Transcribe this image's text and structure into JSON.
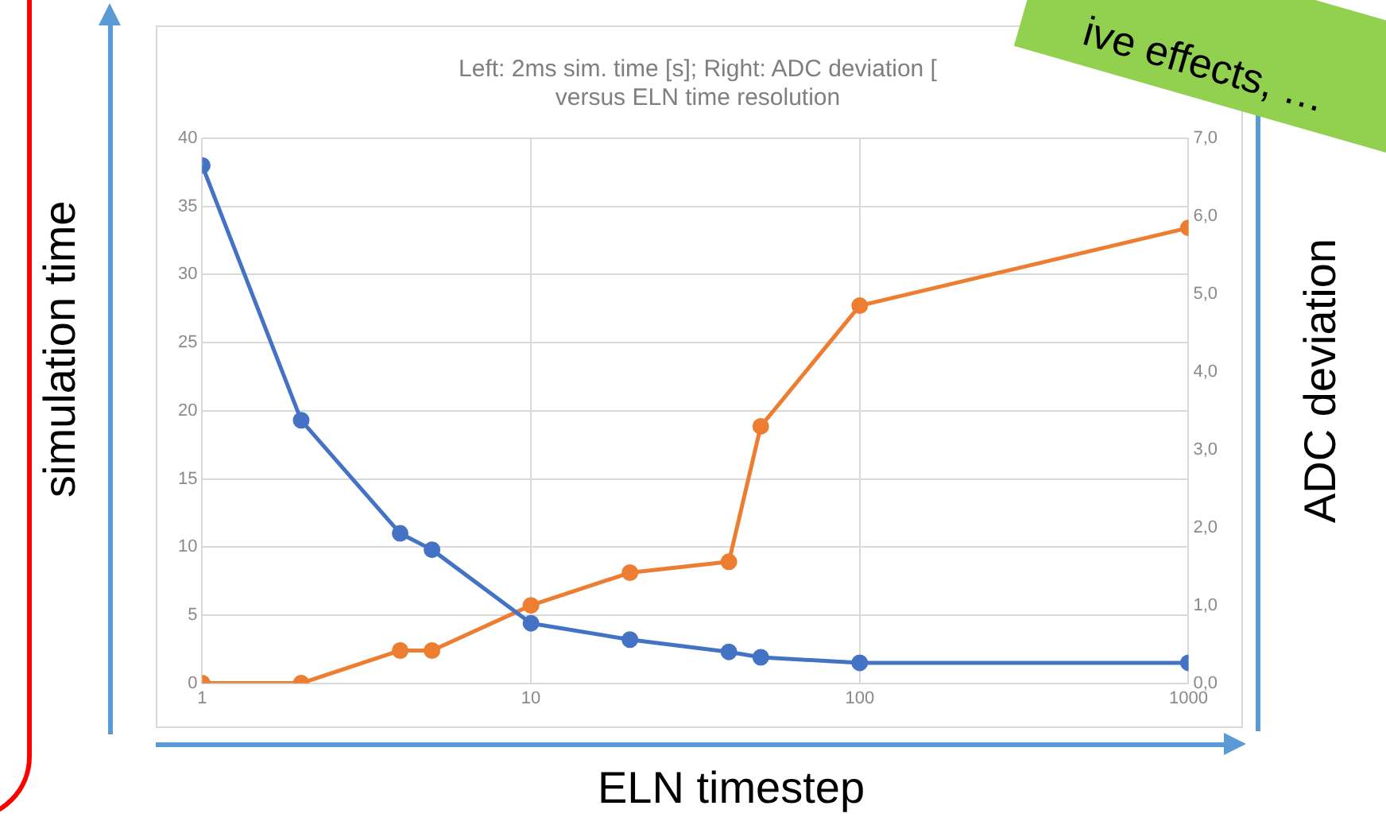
{
  "chart_data": {
    "type": "line",
    "title": "Left: 2ms sim. time [s]; Right: ADC deviation [\nversus ELN time resolution",
    "xlabel": "ELN timestep",
    "ylabel": "simulation time",
    "y2label": "ADC deviation",
    "annotations": [
      "ive effects, …"
    ],
    "x": [
      1,
      2,
      4,
      5,
      10,
      20,
      40,
      50,
      100,
      1000
    ],
    "series": [
      {
        "color": "#4472c4",
        "values": [
          38,
          19.3,
          11,
          9.8,
          4.4,
          3.2,
          2.3,
          1.9,
          1.5,
          1.5
        ]
      },
      {
        "color": "#ed7d31",
        "axis": "y2",
        "values": [
          0,
          0,
          0.42,
          0.42,
          1.0,
          1.42,
          1.56,
          3.3,
          4.85,
          5.85
        ]
      }
    ],
    "log": "x",
    "xlim": [
      1,
      1000
    ],
    "xticks": [
      1,
      10,
      100,
      1000
    ],
    "ylim": [
      0,
      40
    ],
    "yticks": [
      0,
      5,
      10,
      15,
      20,
      25,
      30,
      35,
      40
    ],
    "y2lim": [
      0,
      7
    ],
    "y2ticks": [
      {
        "value": 0,
        "label": "0,0"
      },
      {
        "value": 1,
        "label": "1,0"
      },
      {
        "value": 2,
        "label": "2,0"
      },
      {
        "value": 3,
        "label": "3,0"
      },
      {
        "value": 4,
        "label": "4,0"
      },
      {
        "value": 5,
        "label": "5,0"
      },
      {
        "value": 6,
        "label": "6,0"
      },
      {
        "value": 7,
        "label": "7,0"
      }
    ],
    "grid": true,
    "marker": "circle",
    "line_style": "solid"
  }
}
